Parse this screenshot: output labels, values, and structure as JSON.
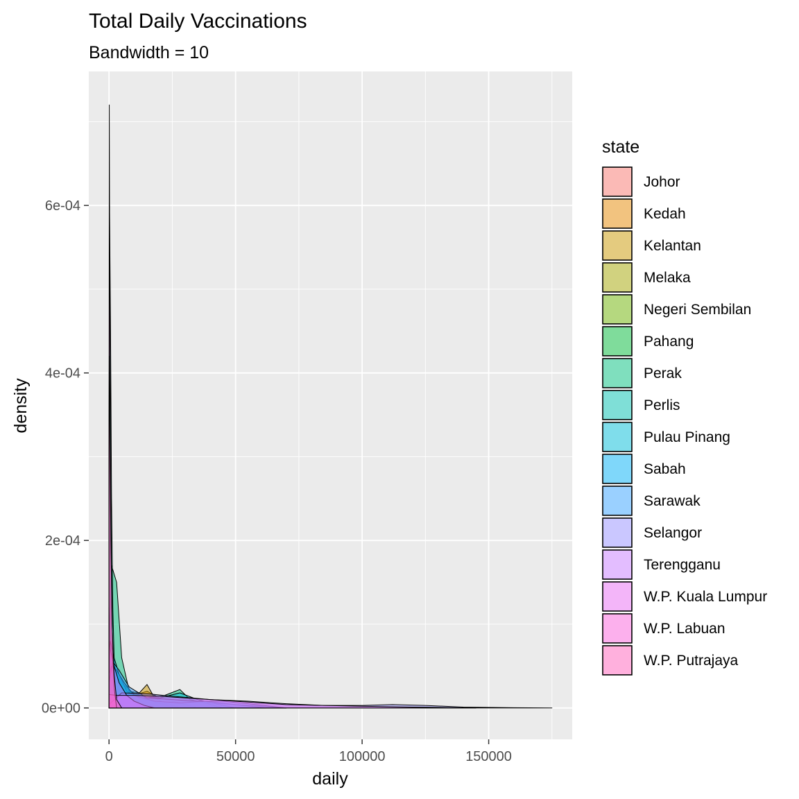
{
  "chart_data": {
    "type": "area",
    "title": "Total Daily Vaccinations",
    "subtitle": "Bandwidth = 10",
    "xlabel": "daily",
    "ylabel": "density",
    "xlim": [
      -8000,
      183000
    ],
    "ylim": [
      -3.75e-05,
      0.00076
    ],
    "x_ticks": [
      0,
      50000,
      100000,
      150000
    ],
    "x_tick_labels": [
      "0",
      "50000",
      "100000",
      "150000"
    ],
    "y_ticks": [
      0,
      0.0002,
      0.0004,
      0.0006
    ],
    "y_tick_labels": [
      "0e+00",
      "2e-04",
      "4e-04",
      "6e-04"
    ],
    "grid": true,
    "fill_alpha": 0.5,
    "legend": {
      "title": "state",
      "position": "right",
      "entries": [
        "Johor",
        "Kedah",
        "Kelantan",
        "Melaka",
        "Negeri Sembilan",
        "Pahang",
        "Perak",
        "Perlis",
        "Pulau Pinang",
        "Sabah",
        "Sarawak",
        "Selangor",
        "Terengganu",
        "W.P. Kuala Lumpur",
        "W.P. Labuan",
        "W.P. Putrajaya"
      ]
    },
    "series": [
      {
        "name": "Johor",
        "color": "#F8766D",
        "x": [
          0,
          2000,
          5000,
          10000,
          20000,
          30000,
          45000,
          60000,
          70000
        ],
        "y": [
          3e-05,
          3e-05,
          2e-05,
          1.6e-05,
          1.2e-05,
          8e-06,
          5e-06,
          2e-06,
          0
        ]
      },
      {
        "name": "Kedah",
        "color": "#E58700",
        "x": [
          0,
          500,
          1500,
          3000,
          6000,
          10000,
          15000,
          20000,
          28000,
          35000
        ],
        "y": [
          0.0001,
          5e-05,
          6e-05,
          4e-05,
          2.5e-05,
          1.5e-05,
          2e-05,
          1.2e-05,
          6e-06,
          0
        ]
      },
      {
        "name": "Kelantan",
        "color": "#C99800",
        "x": [
          0,
          500,
          2000,
          4000,
          8000,
          12000,
          15000,
          18000,
          22000,
          28000
        ],
        "y": [
          8e-05,
          6e-05,
          5e-05,
          4e-05,
          2e-05,
          1.8e-05,
          2.8e-05,
          1.2e-05,
          6e-06,
          0
        ]
      },
      {
        "name": "Melaka",
        "color": "#A3A500",
        "x": [
          0,
          300,
          1000,
          2500,
          5000,
          8000,
          12000,
          16000
        ],
        "y": [
          0.00012,
          0.0001,
          7e-05,
          4e-05,
          2e-05,
          1e-05,
          4e-06,
          0
        ]
      },
      {
        "name": "Negeri Sembilan",
        "color": "#6BB100",
        "x": [
          0,
          300,
          1000,
          3000,
          6000,
          10000,
          14000,
          20000
        ],
        "y": [
          0.00011,
          9e-05,
          6e-05,
          4e-05,
          2e-05,
          1e-05,
          4e-06,
          0
        ]
      },
      {
        "name": "Pahang",
        "color": "#00BA38",
        "x": [
          0,
          500,
          2000,
          5000,
          9000,
          14000,
          20000,
          26000
        ],
        "y": [
          9e-05,
          7e-05,
          5e-05,
          3e-05,
          1.8e-05,
          1e-05,
          6e-06,
          0
        ]
      },
      {
        "name": "Perak",
        "color": "#00BF7D",
        "x": [
          0,
          1000,
          3000,
          5000,
          8000,
          15000,
          22000,
          28000,
          32000,
          38000,
          45000
        ],
        "y": [
          6e-05,
          0.00017,
          0.00015,
          6e-05,
          2e-05,
          1.2e-05,
          1.5e-05,
          2.2e-05,
          1e-05,
          6e-06,
          0
        ]
      },
      {
        "name": "Perlis",
        "color": "#00C0AF",
        "x": [
          0,
          200,
          600,
          1000,
          1500,
          2200,
          3000,
          4000
        ],
        "y": [
          0.0003,
          0.0006,
          0.00045,
          0.00025,
          0.00012,
          4e-05,
          1e-05,
          0
        ]
      },
      {
        "name": "Pulau Pinang",
        "color": "#00BCD8",
        "x": [
          0,
          500,
          2000,
          4000,
          7000,
          12000,
          20000,
          28000,
          35000,
          42000,
          50000
        ],
        "y": [
          5e-05,
          8e-05,
          6e-05,
          4e-05,
          2e-05,
          1.2e-05,
          1.2e-05,
          1.8e-05,
          1e-05,
          5e-06,
          0
        ]
      },
      {
        "name": "Sabah",
        "color": "#00B0F6",
        "x": [
          0,
          1000,
          3000,
          6000,
          10000,
          18000,
          28000,
          38000,
          50000,
          62000
        ],
        "y": [
          4e-05,
          5e-05,
          4.5e-05,
          3e-05,
          1.5e-05,
          8e-06,
          6e-06,
          8e-06,
          4e-06,
          0
        ]
      },
      {
        "name": "Sarawak",
        "color": "#35A2FF",
        "x": [
          0,
          1500,
          4000,
          8000,
          15000,
          25000,
          35000,
          45000,
          55000,
          70000
        ],
        "y": [
          3e-05,
          5.5e-05,
          4.5e-05,
          2.5e-05,
          1.2e-05,
          1e-05,
          8e-06,
          8e-06,
          5e-06,
          0
        ]
      },
      {
        "name": "Selangor",
        "color": "#9590FF",
        "x": [
          0,
          5000,
          15000,
          25000,
          40000,
          55000,
          70000,
          85000,
          100000,
          112000,
          125000,
          140000,
          160000,
          175000
        ],
        "y": [
          4e-06,
          1.8e-05,
          1.7e-05,
          1.4e-05,
          1e-05,
          8e-06,
          5e-06,
          3e-06,
          3e-06,
          4e-06,
          3e-06,
          1e-06,
          3e-07,
          0
        ]
      },
      {
        "name": "Terengganu",
        "color": "#C77CFF",
        "x": [
          0,
          500,
          2000,
          4000,
          7000,
          10000,
          14000,
          18000
        ],
        "y": [
          8e-05,
          7e-05,
          5e-05,
          3e-05,
          1.5e-05,
          8e-06,
          3e-06,
          0
        ]
      },
      {
        "name": "W.P. Kuala Lumpur",
        "color": "#E76BF3",
        "x": [
          0,
          3000,
          10000,
          20000,
          30000,
          40000,
          55000,
          70000,
          85000,
          100000,
          120000,
          145000
        ],
        "y": [
          1.6e-05,
          1.5e-05,
          1.5e-05,
          1.4e-05,
          1.2e-05,
          1e-05,
          7e-06,
          4e-06,
          3e-06,
          2e-06,
          1e-06,
          0
        ]
      },
      {
        "name": "W.P. Labuan",
        "color": "#FA62DB",
        "x": [
          0,
          100,
          300,
          600,
          1000,
          1500,
          2200,
          3000
        ],
        "y": [
          0.00035,
          0.00072,
          0.0005,
          0.0003,
          0.00015,
          6e-05,
          2e-05,
          0
        ]
      },
      {
        "name": "W.P. Putrajaya",
        "color": "#FF62BC",
        "x": [
          0,
          100,
          300,
          700,
          1200,
          2000,
          3000,
          5000
        ],
        "y": [
          0.0003,
          0.00042,
          0.00035,
          0.0002,
          0.0001,
          4e-05,
          1e-05,
          0
        ]
      }
    ]
  }
}
